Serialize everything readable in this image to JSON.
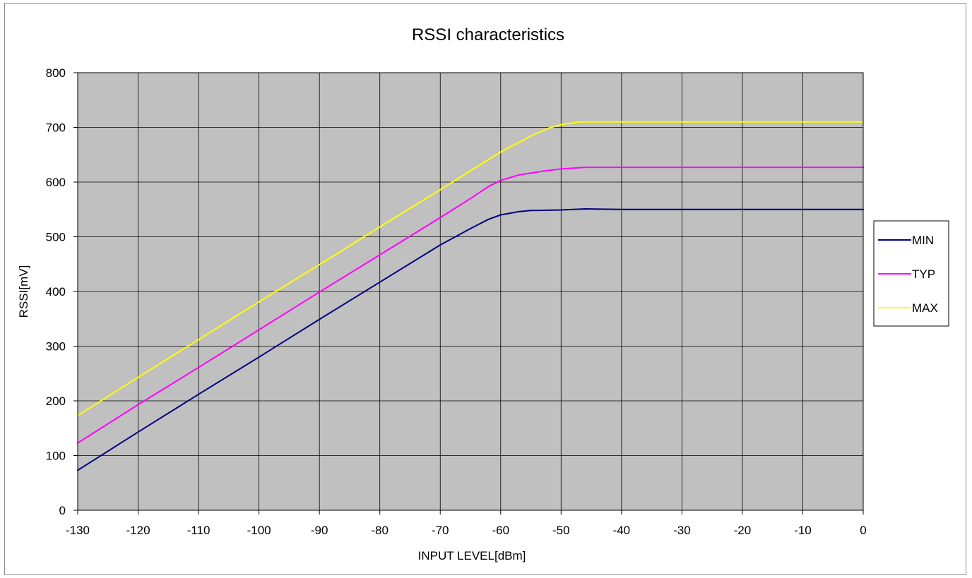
{
  "chart_data": {
    "type": "line",
    "title": "RSSI characteristics",
    "xlabel": "INPUT LEVEL[dBm]",
    "ylabel": "RSSI[mV]",
    "xlim": [
      -130,
      0
    ],
    "ylim": [
      0,
      800
    ],
    "x_ticks": [
      -130,
      -120,
      -110,
      -100,
      -90,
      -80,
      -70,
      -60,
      -50,
      -40,
      -30,
      -20,
      -10,
      0
    ],
    "y_ticks": [
      0,
      100,
      200,
      300,
      400,
      500,
      600,
      700,
      800
    ],
    "grid": true,
    "legend_position": "right",
    "plot_background": "#c0c0c0",
    "series": [
      {
        "name": "MIN",
        "color": "#000080",
        "points": [
          [
            -130,
            73
          ],
          [
            -120,
            143
          ],
          [
            -110,
            212
          ],
          [
            -100,
            280
          ],
          [
            -90,
            349
          ],
          [
            -80,
            417
          ],
          [
            -70,
            485
          ],
          [
            -65,
            515
          ],
          [
            -62,
            532
          ],
          [
            -60,
            540
          ],
          [
            -57,
            546
          ],
          [
            -55,
            548
          ],
          [
            -50,
            549
          ],
          [
            -46,
            551
          ],
          [
            -40,
            550
          ],
          [
            0,
            550
          ]
        ]
      },
      {
        "name": "TYP",
        "color": "#ff00ff",
        "points": [
          [
            -130,
            123
          ],
          [
            -120,
            193
          ],
          [
            -110,
            261
          ],
          [
            -100,
            330
          ],
          [
            -90,
            399
          ],
          [
            -80,
            467
          ],
          [
            -70,
            535
          ],
          [
            -65,
            570
          ],
          [
            -62,
            592
          ],
          [
            -60,
            603
          ],
          [
            -57,
            613
          ],
          [
            -53,
            620
          ],
          [
            -50,
            624
          ],
          [
            -46,
            627
          ],
          [
            -40,
            627
          ],
          [
            0,
            627
          ]
        ]
      },
      {
        "name": "MAX",
        "color": "#ffff00",
        "points": [
          [
            -130,
            173
          ],
          [
            -120,
            243
          ],
          [
            -110,
            312
          ],
          [
            -100,
            381
          ],
          [
            -90,
            449
          ],
          [
            -80,
            518
          ],
          [
            -70,
            586
          ],
          [
            -60,
            655
          ],
          [
            -55,
            684
          ],
          [
            -52,
            699
          ],
          [
            -50,
            705
          ],
          [
            -47,
            710
          ],
          [
            -40,
            710
          ],
          [
            0,
            710
          ]
        ]
      }
    ]
  }
}
